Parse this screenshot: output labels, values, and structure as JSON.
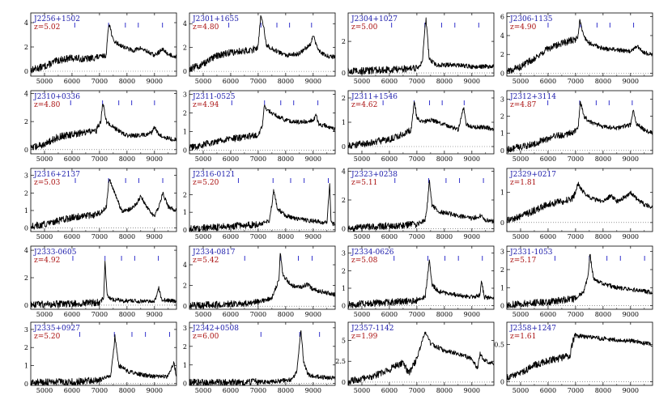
{
  "figure": {
    "columns": 4,
    "rows": 5,
    "x_ticks": [
      5000,
      6000,
      7000,
      8000,
      9000
    ],
    "xlim": [
      4500,
      9800
    ],
    "colors": {
      "name": "#1a1aaa",
      "redshift": "#aa1111",
      "line_marker": "#3333cc",
      "spectrum": "#000000",
      "axis": "#000000"
    }
  },
  "chart_data": [
    {
      "type": "line",
      "name": "J2256+1502",
      "z_label": "z=5.02",
      "xlim": [
        4500,
        9800
      ],
      "ylim": [
        -0.4,
        4.8
      ],
      "yticks": [
        0,
        2,
        4
      ],
      "marker_x": [
        6100,
        7330,
        7940,
        8410,
        9290
      ],
      "x": [
        4500,
        5000,
        5500,
        6000,
        6500,
        7000,
        7250,
        7300,
        7350,
        7500,
        7800,
        8200,
        8500,
        9000,
        9300,
        9500,
        9800
      ],
      "y": [
        0.1,
        0.4,
        0.9,
        1.1,
        1.0,
        1.2,
        1.3,
        3.2,
        4.0,
        2.5,
        2.1,
        1.7,
        1.9,
        1.3,
        1.8,
        1.4,
        1.2
      ]
    },
    {
      "type": "line",
      "name": "J2301+1655",
      "z_label": "z=4.80",
      "xlim": [
        4500,
        9800
      ],
      "ylim": [
        -0.4,
        4.9
      ],
      "yticks": [
        0,
        2,
        4
      ],
      "marker_x": [
        5930,
        7100,
        7680,
        8140,
        8940
      ],
      "x": [
        4500,
        5000,
        5500,
        6000,
        6500,
        6800,
        7000,
        7050,
        7100,
        7200,
        7300,
        7500,
        8000,
        8500,
        8900,
        9000,
        9200,
        9500,
        9800
      ],
      "y": [
        0.2,
        0.6,
        1.3,
        1.6,
        1.7,
        1.8,
        2.1,
        3.6,
        4.7,
        3.8,
        2.2,
        1.9,
        1.3,
        1.5,
        2.3,
        3.0,
        1.7,
        1.3,
        1.2
      ]
    },
    {
      "type": "line",
      "name": "J2304+1027",
      "z_label": "z=5.00",
      "xlim": [
        4500,
        9800
      ],
      "ylim": [
        -0.2,
        3.8
      ],
      "yticks": [
        0,
        2
      ],
      "marker_x": [
        6080,
        7290,
        7900,
        8380,
        9250
      ],
      "x": [
        4500,
        6000,
        7000,
        7200,
        7280,
        7330,
        7450,
        7700,
        8500,
        9000,
        9800
      ],
      "y": [
        0.1,
        0.2,
        0.3,
        0.7,
        2.6,
        3.4,
        0.9,
        0.5,
        0.5,
        0.4,
        0.4
      ]
    },
    {
      "type": "line",
      "name": "J2306-1135",
      "z_label": "z=4.90",
      "xlim": [
        4500,
        9800
      ],
      "ylim": [
        -0.3,
        6.4
      ],
      "yticks": [
        0,
        2,
        4,
        6
      ],
      "marker_x": [
        6000,
        7180,
        7780,
        8250,
        9110
      ],
      "x": [
        4500,
        5000,
        5500,
        6000,
        6500,
        7000,
        7100,
        7150,
        7200,
        7300,
        7500,
        8000,
        8500,
        9000,
        9200,
        9500,
        9800
      ],
      "y": [
        0.2,
        0.7,
        1.6,
        2.6,
        3.2,
        3.6,
        4.0,
        5.8,
        5.0,
        3.9,
        3.2,
        2.6,
        2.5,
        2.3,
        2.9,
        2.2,
        2.0
      ]
    },
    {
      "type": "line",
      "name": "J2310+0336",
      "z_label": "z=4.80",
      "xlim": [
        4500,
        9800
      ],
      "ylim": [
        -0.3,
        4.2
      ],
      "yticks": [
        0,
        2,
        4
      ],
      "marker_x": [
        5950,
        7110,
        7700,
        8170,
        9000
      ],
      "x": [
        4500,
        5000,
        5500,
        6000,
        6500,
        6900,
        7050,
        7120,
        7250,
        7500,
        8000,
        8500,
        8900,
        9000,
        9200,
        9500,
        9800
      ],
      "y": [
        0.1,
        0.4,
        0.9,
        1.1,
        1.2,
        1.4,
        2.0,
        3.4,
        2.0,
        1.6,
        1.0,
        1.0,
        1.2,
        1.6,
        1.0,
        0.8,
        0.7
      ]
    },
    {
      "type": "line",
      "name": "J2311-0525",
      "z_label": "z=4.94",
      "xlim": [
        4500,
        9800
      ],
      "ylim": [
        -0.2,
        3.2
      ],
      "yticks": [
        0,
        1,
        2,
        3
      ],
      "marker_x": [
        6040,
        7230,
        7820,
        8290,
        9170
      ],
      "x": [
        4500,
        5000,
        5500,
        6000,
        6500,
        7000,
        7150,
        7230,
        7300,
        7500,
        8000,
        8500,
        9000,
        9100,
        9200,
        9500,
        9800
      ],
      "y": [
        0.1,
        0.3,
        0.5,
        0.6,
        0.7,
        0.8,
        1.3,
        2.5,
        2.2,
        2.0,
        1.6,
        1.5,
        1.6,
        1.9,
        1.4,
        1.3,
        1.1
      ]
    },
    {
      "type": "line",
      "name": "J2311+1546",
      "z_label": "z=4.62",
      "xlim": [
        4500,
        9800
      ],
      "ylim": [
        -0.3,
        2.3
      ],
      "yticks": [
        0,
        1,
        2
      ],
      "marker_x": [
        5770,
        6900,
        7460,
        7920,
        8720
      ],
      "x": [
        4500,
        5000,
        5500,
        6000,
        6500,
        6800,
        6900,
        7000,
        7200,
        7500,
        8000,
        8500,
        8700,
        8800,
        9000,
        9500,
        9800
      ],
      "y": [
        0.05,
        0.1,
        0.2,
        0.3,
        0.5,
        0.7,
        1.8,
        1.2,
        1.0,
        1.1,
        0.9,
        0.7,
        1.6,
        0.9,
        0.8,
        0.8,
        0.7
      ]
    },
    {
      "type": "line",
      "name": "J2312+3114",
      "z_label": "z=4.87",
      "xlim": [
        4500,
        9800
      ],
      "ylim": [
        -0.2,
        3.5
      ],
      "yticks": [
        0,
        1,
        2,
        3
      ],
      "marker_x": [
        5990,
        7150,
        7750,
        8220,
        9060
      ],
      "x": [
        4500,
        5000,
        5500,
        6000,
        6500,
        7000,
        7100,
        7170,
        7300,
        7500,
        8000,
        8500,
        9000,
        9100,
        9200,
        9500,
        9800
      ],
      "y": [
        0.05,
        0.2,
        0.4,
        0.7,
        0.9,
        1.1,
        1.4,
        2.9,
        2.0,
        1.7,
        1.4,
        1.3,
        1.5,
        2.3,
        1.6,
        1.2,
        1.0
      ]
    },
    {
      "type": "line",
      "name": "J2316+2137",
      "z_label": "z=5.03",
      "xlim": [
        4500,
        9800
      ],
      "ylim": [
        -0.2,
        3.4
      ],
      "yticks": [
        0,
        1,
        2,
        3
      ],
      "marker_x": [
        6120,
        7330,
        7950,
        8430,
        9300
      ],
      "x": [
        4500,
        5000,
        5500,
        6000,
        6500,
        7000,
        7250,
        7350,
        7500,
        7800,
        8000,
        8300,
        8500,
        8800,
        9000,
        9200,
        9300,
        9500,
        9800
      ],
      "y": [
        0.1,
        0.2,
        0.4,
        0.6,
        0.7,
        0.8,
        1.2,
        2.8,
        2.2,
        1.0,
        1.0,
        1.3,
        1.8,
        1.0,
        0.7,
        1.4,
        2.0,
        1.2,
        1.0
      ]
    },
    {
      "type": "line",
      "name": "J2316-0121",
      "z_label": "z=5.20",
      "xlim": [
        4500,
        9800
      ],
      "ylim": [
        -0.1,
        3.5
      ],
      "yticks": [
        0,
        1,
        2
      ],
      "marker_x": [
        6280,
        7540,
        8180,
        8670,
        9550
      ],
      "x": [
        4500,
        5000,
        6000,
        7000,
        7400,
        7500,
        7560,
        7700,
        8000,
        8500,
        9000,
        9500,
        9600,
        9650,
        9800
      ],
      "y": [
        0.05,
        0.1,
        0.2,
        0.3,
        0.5,
        1.5,
        2.3,
        1.2,
        0.8,
        0.6,
        0.5,
        0.4,
        2.7,
        0.4,
        0.3
      ]
    },
    {
      "type": "line",
      "name": "J2323+0238",
      "z_label": "z=5.11",
      "xlim": [
        4500,
        9800
      ],
      "ylim": [
        -0.2,
        4.2
      ],
      "yticks": [
        0,
        2,
        4
      ],
      "marker_x": [
        6200,
        7430,
        8060,
        8550,
        9420
      ],
      "x": [
        4500,
        5000,
        6000,
        7000,
        7300,
        7400,
        7450,
        7550,
        7800,
        8500,
        9000,
        9300,
        9500,
        9800
      ],
      "y": [
        0.05,
        0.1,
        0.2,
        0.3,
        0.6,
        2.0,
        3.4,
        1.6,
        1.2,
        0.9,
        0.7,
        0.9,
        0.6,
        0.5
      ]
    },
    {
      "type": "line",
      "name": "J2329+0217",
      "z_label": "z=1.81",
      "xlim": [
        4500,
        9800
      ],
      "ylim": [
        -0.3,
        1.8
      ],
      "yticks": [
        0,
        1
      ],
      "marker_x": [],
      "x": [
        4500,
        5000,
        5500,
        6000,
        6500,
        6900,
        7100,
        7200,
        7400,
        7600,
        8000,
        8300,
        8500,
        8900,
        9000,
        9200,
        9500,
        9800
      ],
      "y": [
        0.05,
        0.2,
        0.4,
        0.6,
        0.7,
        0.8,
        1.3,
        1.1,
        0.9,
        0.8,
        0.7,
        0.9,
        0.7,
        0.9,
        1.0,
        0.8,
        0.6,
        0.5
      ]
    },
    {
      "type": "line",
      "name": "J2333-0605",
      "z_label": "z=4.92",
      "xlim": [
        4500,
        9800
      ],
      "ylim": [
        -0.3,
        4.3
      ],
      "yticks": [
        0,
        2,
        4
      ],
      "marker_x": [
        6030,
        7200,
        7800,
        8280,
        9140
      ],
      "x": [
        4500,
        6000,
        7000,
        7150,
        7200,
        7280,
        7500,
        8000,
        8500,
        9000,
        9100,
        9150,
        9250,
        9800
      ],
      "y": [
        0.05,
        0.1,
        0.2,
        0.5,
        3.2,
        0.7,
        0.4,
        0.3,
        0.3,
        0.3,
        0.9,
        1.3,
        0.4,
        0.3
      ]
    },
    {
      "type": "line",
      "name": "J2334-0817",
      "z_label": "z=5.42",
      "xlim": [
        4500,
        9800
      ],
      "ylim": [
        -0.3,
        5.8
      ],
      "yticks": [
        0,
        2,
        4
      ],
      "marker_x": [
        6510,
        7800,
        8460,
        8960,
        9880
      ],
      "x": [
        4500,
        5000,
        6000,
        7000,
        7500,
        7750,
        7800,
        7900,
        8200,
        8500,
        8800,
        9000,
        9500,
        9800
      ],
      "y": [
        0.05,
        0.1,
        0.2,
        0.4,
        0.8,
        2.5,
        5.1,
        3.0,
        2.0,
        1.8,
        2.1,
        1.6,
        1.3,
        1.1
      ]
    },
    {
      "type": "line",
      "name": "J2334-0626",
      "z_label": "z=5.08",
      "xlim": [
        4500,
        9800
      ],
      "ylim": [
        -0.2,
        3.4
      ],
      "yticks": [
        0,
        1,
        2,
        3
      ],
      "marker_x": [
        6170,
        7400,
        8020,
        8510,
        9380
      ],
      "x": [
        4500,
        5000,
        6000,
        7000,
        7300,
        7400,
        7450,
        7550,
        7800,
        8500,
        9000,
        9300,
        9350,
        9450,
        9800
      ],
      "y": [
        0.05,
        0.1,
        0.2,
        0.3,
        0.5,
        1.8,
        2.6,
        1.2,
        0.8,
        0.6,
        0.5,
        0.6,
        1.4,
        0.5,
        0.4
      ]
    },
    {
      "type": "line",
      "name": "J2331-1053",
      "z_label": "z=5.17",
      "xlim": [
        4500,
        9800
      ],
      "ylim": [
        -0.2,
        3.3
      ],
      "yticks": [
        0,
        1,
        2,
        3
      ],
      "marker_x": [
        6250,
        7500,
        8140,
        8630,
        9510
      ],
      "x": [
        4500,
        5000,
        6000,
        7000,
        7300,
        7450,
        7520,
        7650,
        8000,
        8500,
        9000,
        9500,
        9800
      ],
      "y": [
        0.05,
        0.1,
        0.2,
        0.4,
        0.8,
        1.6,
        2.9,
        1.5,
        1.2,
        1.0,
        0.9,
        0.8,
        0.7
      ]
    },
    {
      "type": "line",
      "name": "J2335+0927",
      "z_label": "z=5.20",
      "xlim": [
        4500,
        9800
      ],
      "ylim": [
        -0.1,
        3.4
      ],
      "yticks": [
        0,
        1,
        2,
        3
      ],
      "marker_x": [
        6280,
        7540,
        8180,
        8670,
        9550
      ],
      "x": [
        4500,
        6000,
        7000,
        7400,
        7500,
        7560,
        7700,
        8000,
        8500,
        9000,
        9500,
        9600,
        9700,
        9800
      ],
      "y": [
        0.05,
        0.1,
        0.2,
        0.4,
        1.6,
        2.6,
        1.0,
        0.7,
        0.5,
        0.4,
        0.4,
        0.8,
        1.2,
        0.4
      ]
    },
    {
      "type": "line",
      "name": "J2342+0508",
      "z_label": "z=6.00",
      "xlim": [
        4500,
        9800
      ],
      "ylim": [
        -0.1,
        3.3
      ],
      "yticks": [
        0,
        1,
        2,
        3
      ],
      "marker_x": [
        7100,
        8510,
        9230
      ],
      "x": [
        4500,
        6000,
        7500,
        8200,
        8400,
        8500,
        8550,
        8650,
        8800,
        9000,
        9500,
        9800
      ],
      "y": [
        0.05,
        0.05,
        0.1,
        0.2,
        0.6,
        2.0,
        2.9,
        1.2,
        0.5,
        0.4,
        0.3,
        0.3
      ]
    },
    {
      "type": "line",
      "name": "J2357-1142",
      "z_label": "z=1.99",
      "xlim": [
        4500,
        9800
      ],
      "ylim": [
        -0.4,
        7.2
      ],
      "yticks": [
        0,
        2.5,
        5
      ],
      "marker_x": [],
      "x": [
        4500,
        5000,
        5500,
        6000,
        6500,
        6700,
        7000,
        7200,
        7300,
        7500,
        8000,
        8500,
        9000,
        9200,
        9300,
        9400,
        9600,
        9800
      ],
      "y": [
        0.1,
        0.4,
        0.8,
        1.5,
        2.4,
        1.0,
        2.8,
        5.0,
        6.1,
        4.6,
        3.8,
        3.4,
        2.8,
        1.6,
        3.4,
        2.8,
        2.4,
        2.2
      ]
    },
    {
      "type": "line",
      "name": "J2358+1247",
      "z_label": "z=1.61",
      "xlim": [
        4500,
        9800
      ],
      "ylim": [
        -0.05,
        0.8
      ],
      "yticks": [
        0,
        0.5
      ],
      "marker_x": [],
      "x": [
        4500,
        5000,
        5500,
        6000,
        6500,
        6800,
        6900,
        7000,
        7500,
        8000,
        8500,
        9000,
        9500,
        9800
      ],
      "y": [
        0.05,
        0.12,
        0.22,
        0.28,
        0.32,
        0.35,
        0.55,
        0.62,
        0.6,
        0.58,
        0.56,
        0.55,
        0.52,
        0.5
      ]
    }
  ]
}
